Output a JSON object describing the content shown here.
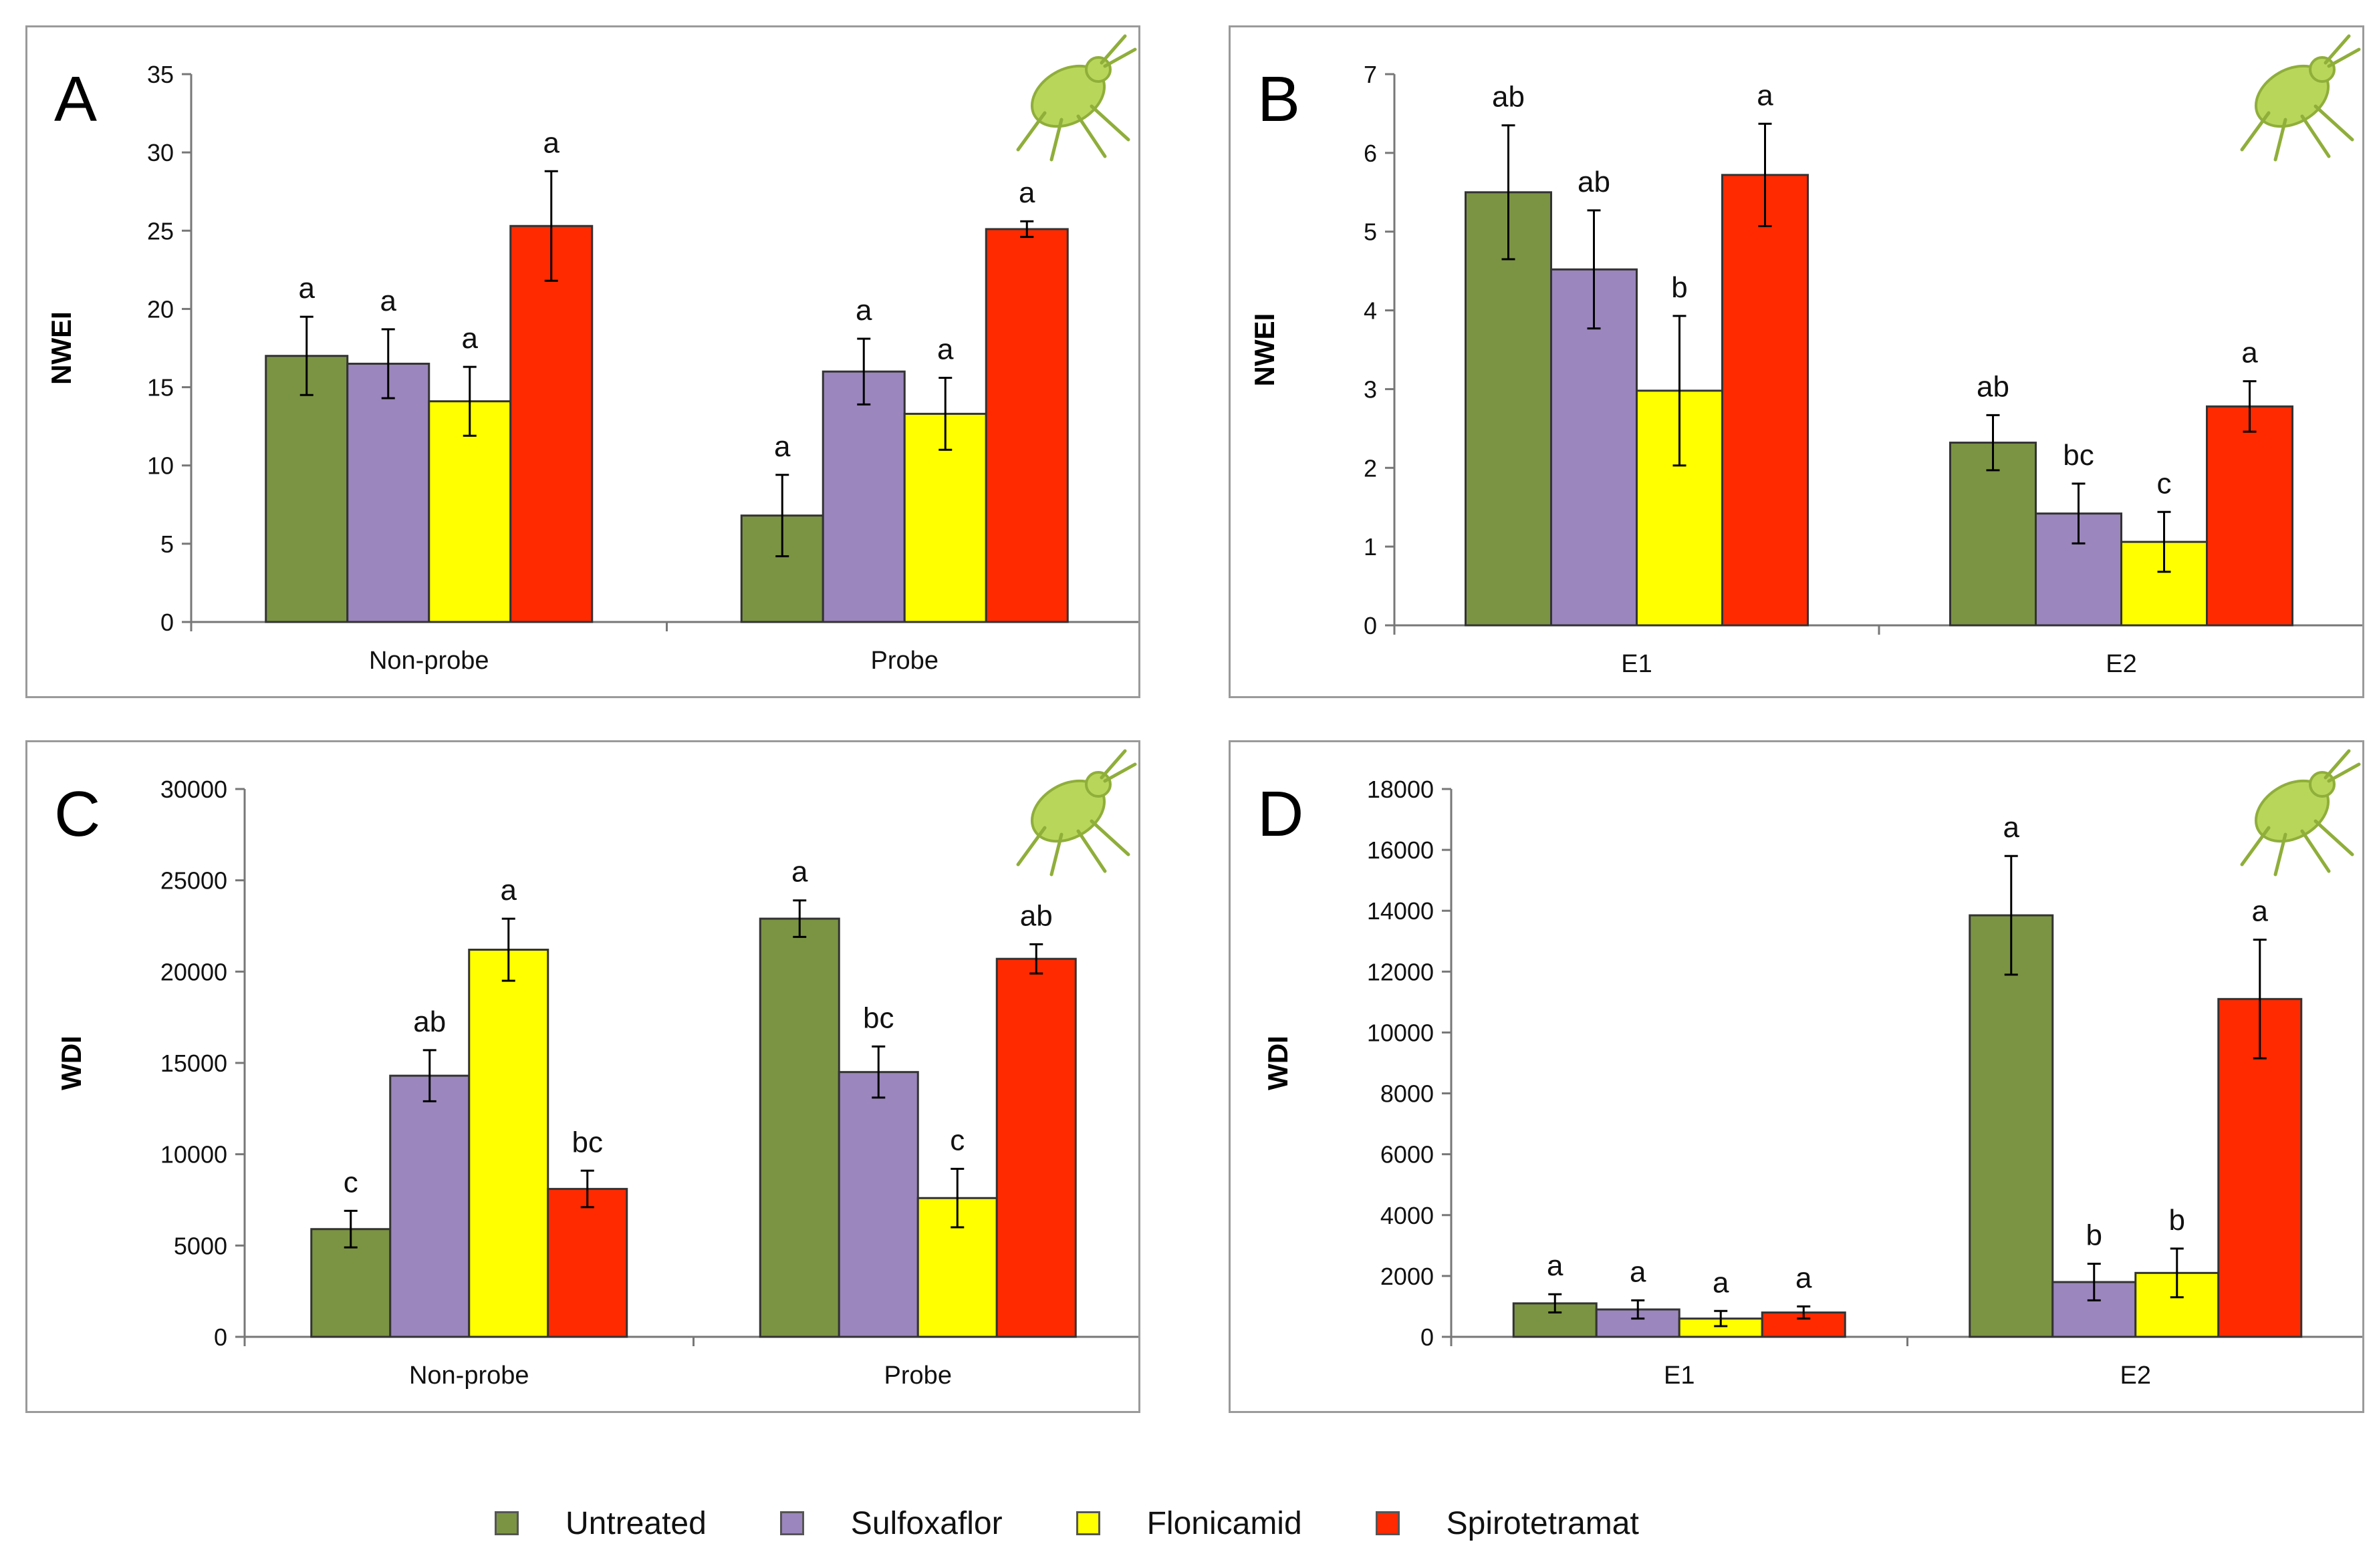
{
  "colors": {
    "Untreated": "#7b9443",
    "Sulfoxaflor": "#9b86bd",
    "Flonicamid": "#ffff00",
    "Spirotetramat": "#ff2a00",
    "insect": "#b8d65a"
  },
  "legend": [
    {
      "name": "Untreated",
      "color": "#7b9443"
    },
    {
      "name": "Sulfoxaflor",
      "color": "#9b86bd"
    },
    {
      "name": "Flonicamid",
      "color": "#ffff00"
    },
    {
      "name": "Spirotetramat",
      "color": "#ff2a00"
    }
  ],
  "chart_data": [
    {
      "panel": "A",
      "type": "bar",
      "ylabel": "NWEI",
      "ylim": [
        0,
        35
      ],
      "yticks": [
        0,
        5,
        10,
        15,
        20,
        25,
        30,
        35
      ],
      "categories": [
        "Non-probe",
        "Probe"
      ],
      "series": [
        {
          "name": "Untreated",
          "values": [
            17.0,
            6.8
          ],
          "errors": [
            2.5,
            2.6
          ],
          "letters": [
            "a",
            "a"
          ]
        },
        {
          "name": "Sulfoxaflor",
          "values": [
            16.5,
            16.0
          ],
          "errors": [
            2.2,
            2.1
          ],
          "letters": [
            "a",
            "a"
          ]
        },
        {
          "name": "Flonicamid",
          "values": [
            14.1,
            13.3
          ],
          "errors": [
            2.2,
            2.3
          ],
          "letters": [
            "a",
            "a"
          ]
        },
        {
          "name": "Spirotetramat",
          "values": [
            25.3,
            25.1
          ],
          "errors": [
            3.5,
            0.5
          ],
          "letters": [
            "a",
            "a"
          ]
        }
      ]
    },
    {
      "panel": "B",
      "type": "bar",
      "ylabel": "NWEI",
      "ylim": [
        0,
        7
      ],
      "yticks": [
        0,
        1,
        2,
        3,
        4,
        5,
        6,
        7
      ],
      "categories": [
        "E1",
        "E2"
      ],
      "series": [
        {
          "name": "Untreated",
          "values": [
            5.5,
            2.32
          ],
          "errors": [
            0.85,
            0.35
          ],
          "letters": [
            "ab",
            "ab"
          ]
        },
        {
          "name": "Sulfoxaflor",
          "values": [
            4.52,
            1.42
          ],
          "errors": [
            0.75,
            0.38
          ],
          "letters": [
            "ab",
            "bc"
          ]
        },
        {
          "name": "Flonicamid",
          "values": [
            2.98,
            1.06
          ],
          "errors": [
            0.95,
            0.38
          ],
          "letters": [
            "b",
            "c"
          ]
        },
        {
          "name": "Spirotetramat",
          "values": [
            5.72,
            2.78
          ],
          "errors": [
            0.65,
            0.32
          ],
          "letters": [
            "a",
            "a"
          ]
        }
      ]
    },
    {
      "panel": "C",
      "type": "bar",
      "ylabel": "WDI",
      "ylim": [
        0,
        30000
      ],
      "yticks": [
        0,
        5000,
        10000,
        15000,
        20000,
        25000,
        30000
      ],
      "categories": [
        "Non-probe",
        "Probe"
      ],
      "series": [
        {
          "name": "Untreated",
          "values": [
            5900,
            22900
          ],
          "errors": [
            1000,
            1000
          ],
          "letters": [
            "c",
            "a"
          ]
        },
        {
          "name": "Sulfoxaflor",
          "values": [
            14300,
            14500
          ],
          "errors": [
            1400,
            1400
          ],
          "letters": [
            "ab",
            "bc"
          ]
        },
        {
          "name": "Flonicamid",
          "values": [
            21200,
            7600
          ],
          "errors": [
            1700,
            1600
          ],
          "letters": [
            "a",
            "c"
          ]
        },
        {
          "name": "Spirotetramat",
          "values": [
            8100,
            20700
          ],
          "errors": [
            1000,
            800
          ],
          "letters": [
            "bc",
            "ab"
          ]
        }
      ]
    },
    {
      "panel": "D",
      "type": "bar",
      "ylabel": "WDI",
      "ylim": [
        0,
        18000
      ],
      "yticks": [
        0,
        2000,
        4000,
        6000,
        8000,
        10000,
        12000,
        14000,
        16000,
        18000
      ],
      "categories": [
        "E1",
        "E2"
      ],
      "series": [
        {
          "name": "Untreated",
          "values": [
            1100,
            13850
          ],
          "errors": [
            300,
            1950
          ],
          "letters": [
            "a",
            "a"
          ]
        },
        {
          "name": "Sulfoxaflor",
          "values": [
            900,
            1800
          ],
          "errors": [
            300,
            600
          ],
          "letters": [
            "a",
            "b"
          ]
        },
        {
          "name": "Flonicamid",
          "values": [
            600,
            2100
          ],
          "errors": [
            250,
            800
          ],
          "letters": [
            "a",
            "b"
          ]
        },
        {
          "name": "Spirotetramat",
          "values": [
            800,
            11100
          ],
          "errors": [
            200,
            1950
          ],
          "letters": [
            "a",
            "a"
          ]
        }
      ]
    }
  ]
}
